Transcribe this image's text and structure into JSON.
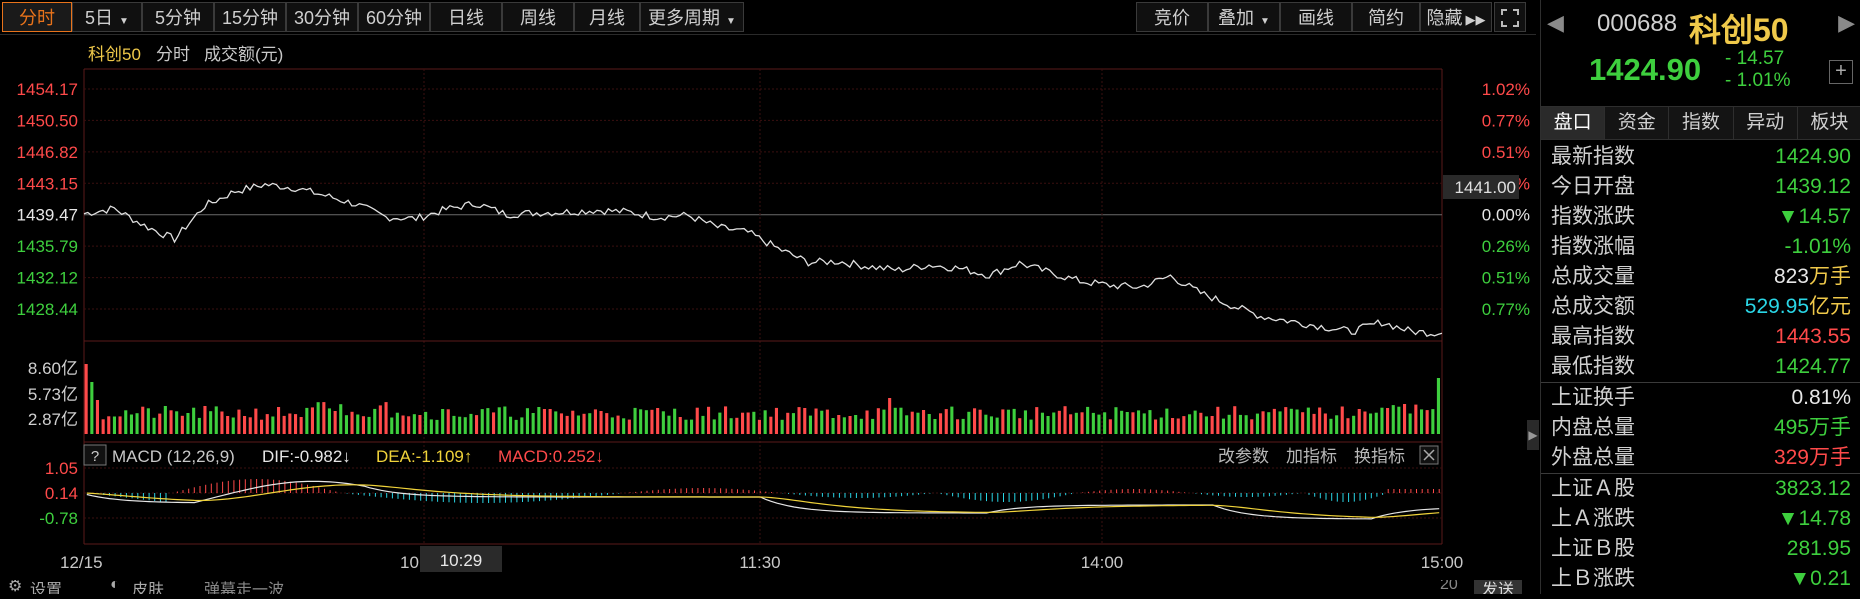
{
  "toolbar": {
    "left_buttons": [
      "分时",
      "5日",
      "5分钟",
      "15分钟",
      "30分钟",
      "60分钟",
      "日线",
      "周线",
      "月线",
      "更多周期"
    ],
    "right_buttons": [
      "竞价",
      "叠加",
      "画线",
      "简约",
      "隐藏"
    ],
    "active": "分时"
  },
  "chart_header": {
    "name": "科创50",
    "mode": "分时",
    "volume_label": "成交额(元)"
  },
  "price_axis_left": [
    "1454.17",
    "1450.50",
    "1446.82",
    "1443.15",
    "1439.47",
    "1435.79",
    "1432.12",
    "1428.44"
  ],
  "price_axis_right": [
    "1.02%",
    "0.77%",
    "0.51%",
    "0.26%",
    "0.00%",
    "0.26%",
    "0.51%",
    "0.77%"
  ],
  "current_price_tag": "1441.00",
  "volume_axis": [
    "8.60亿",
    "5.73亿",
    "2.87亿"
  ],
  "macd_header": {
    "help": "?",
    "title": "MACD (12,26,9)",
    "dif": "DIF:-0.982↓",
    "dea": "DEA:-1.109↑",
    "macd": "MACD:0.252↓",
    "actions": [
      "改参数",
      "加指标",
      "换指标"
    ]
  },
  "macd_axis": [
    "1.05",
    "0.14",
    "-0.78"
  ],
  "time_axis": [
    "12/15",
    "10",
    "10:29",
    "11:30",
    "14:00",
    "15:00"
  ],
  "colors": {
    "up": "#ff4a4a",
    "down": "#3ecf3e",
    "line": "#e0e0e0",
    "dea": "#f0d33a",
    "accent": "#e8731b"
  },
  "chart_data": {
    "type": "line",
    "title": "科创50",
    "price_range": [
      1424.0,
      1454.17
    ],
    "base_price": 1439.47,
    "y_ticks_left": [
      1454.17,
      1450.5,
      1446.82,
      1443.15,
      1439.47,
      1435.79,
      1432.12,
      1428.44
    ],
    "x_labels": [
      "12/15",
      "10",
      "10:29",
      "11:30",
      "14:00",
      "15:00"
    ],
    "price_series": [
      1439.6,
      1440.2,
      1438.2,
      1436.6,
      1440.5,
      1442.2,
      1443.0,
      1442.6,
      1441.7,
      1440.7,
      1439.2,
      1439.0,
      1440.1,
      1440.8,
      1439.5,
      1439.7,
      1439.8,
      1440.0,
      1439.8,
      1439.2,
      1439.4,
      1438.0,
      1437.4,
      1435.5,
      1433.9,
      1434.0,
      1433.4,
      1433.0,
      1433.6,
      1433.2,
      1432.4,
      1433.8,
      1432.7,
      1431.7,
      1431.2,
      1431.0,
      1432.3,
      1430.3,
      1428.9,
      1427.6,
      1427.0,
      1426.4,
      1425.8,
      1426.9,
      1425.8,
      1425.6
    ],
    "volume_ticks": [
      "8.60亿",
      "5.73亿",
      "2.87亿"
    ],
    "macd": {
      "dif": -0.982,
      "dea": -1.109,
      "macd": 0.252,
      "y_ticks": [
        1.05,
        0.14,
        -0.78
      ]
    }
  },
  "right_panel": {
    "code": "000688",
    "name": "科创50",
    "price": "1424.90",
    "change": "- 14.57",
    "change_pct": "- 1.01%",
    "tabs": [
      "盘口",
      "资金",
      "指数",
      "异动",
      "板块"
    ],
    "rows": [
      {
        "label": "最新指数",
        "value": "1424.90",
        "color": "green"
      },
      {
        "label": "今日开盘",
        "value": "1439.12",
        "color": "green"
      },
      {
        "label": "指数涨跌",
        "value": "▼14.57",
        "color": "green"
      },
      {
        "label": "指数涨幅",
        "value": "-1.01%",
        "color": "green"
      },
      {
        "label": "总成交量",
        "value": "823",
        "unit": "万手",
        "color": "white"
      },
      {
        "label": "总成交额",
        "value": "529.95",
        "unit": "亿元",
        "color": "cyan"
      },
      {
        "label": "最高指数",
        "value": "1443.55",
        "color": "red"
      },
      {
        "label": "最低指数",
        "value": "1424.77",
        "color": "green"
      },
      {
        "label": "上证换手",
        "value": "0.81%",
        "color": "white"
      },
      {
        "label": "内盘总量",
        "value": "495",
        "unit": "万手",
        "color": "green"
      },
      {
        "label": "外盘总量",
        "value": "329",
        "unit": "万手",
        "color": "red"
      },
      {
        "label": "上证Ａ股",
        "value": "3823.12",
        "color": "green"
      },
      {
        "label": "上Ａ涨跌",
        "value": "▼14.78",
        "color": "green"
      },
      {
        "label": "上证Ｂ股",
        "value": "281.95",
        "color": "green"
      },
      {
        "label": "上Ｂ涨跌",
        "value": "▼0.21",
        "color": "green"
      }
    ]
  },
  "bottom": {
    "settings": "设置",
    "skin": "皮肤",
    "danmu": "弹幕走一波",
    "count": "20",
    "send": "发送"
  }
}
